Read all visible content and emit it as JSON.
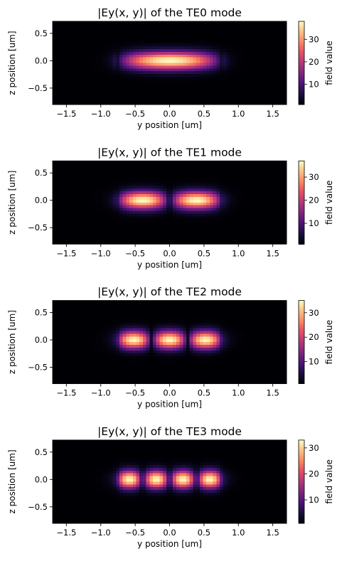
{
  "colors": {
    "cmap": "magma",
    "frame": "#000000",
    "background": "#ffffff"
  },
  "chart_data": [
    {
      "type": "heatmap",
      "title": "|Ey(x, y)| of the TE0 mode",
      "xlabel": "y position [um]",
      "ylabel": "z position [um]",
      "xlim": [
        -1.7,
        1.7
      ],
      "ylim": [
        -0.8,
        0.72
      ],
      "xticks": [
        "-1.5",
        "-1.0",
        "-0.5",
        "0.0",
        "0.5",
        "1.0",
        "1.5"
      ],
      "yticks": [
        "-0.5",
        "0.0",
        "0.5"
      ],
      "mode": 0,
      "vmin": 1,
      "vmax": 38,
      "colorbar": {
        "label": "field value",
        "ticks": [
          "10",
          "20",
          "30"
        ]
      }
    },
    {
      "type": "heatmap",
      "title": "|Ey(x, y)| of the TE1 mode",
      "xlabel": "y position [um]",
      "ylabel": "z position [um]",
      "xlim": [
        -1.7,
        1.7
      ],
      "ylim": [
        -0.8,
        0.72
      ],
      "xticks": [
        "-1.5",
        "-1.0",
        "-0.5",
        "0.0",
        "0.5",
        "1.0",
        "1.5"
      ],
      "yticks": [
        "-0.5",
        "0.0",
        "0.5"
      ],
      "mode": 1,
      "vmin": 1,
      "vmax": 37,
      "colorbar": {
        "label": "field value",
        "ticks": [
          "10",
          "20",
          "30"
        ]
      }
    },
    {
      "type": "heatmap",
      "title": "|Ey(x, y)| of the TE2 mode",
      "xlabel": "y position [um]",
      "ylabel": "z position [um]",
      "xlim": [
        -1.7,
        1.7
      ],
      "ylim": [
        -0.8,
        0.72
      ],
      "xticks": [
        "-1.5",
        "-1.0",
        "-0.5",
        "0.0",
        "0.5",
        "1.0",
        "1.5"
      ],
      "yticks": [
        "-0.5",
        "0.0",
        "0.5"
      ],
      "mode": 2,
      "vmin": 1,
      "vmax": 35,
      "colorbar": {
        "label": "field value",
        "ticks": [
          "10",
          "20",
          "30"
        ]
      }
    },
    {
      "type": "heatmap",
      "title": "|Ey(x, y)| of the TE3 mode",
      "xlabel": "y position [um]",
      "ylabel": "z position [um]",
      "xlim": [
        -1.7,
        1.7
      ],
      "ylim": [
        -0.8,
        0.72
      ],
      "xticks": [
        "-1.5",
        "-1.0",
        "-0.5",
        "0.0",
        "0.5",
        "1.0",
        "1.5"
      ],
      "yticks": [
        "-0.5",
        "0.0",
        "0.5"
      ],
      "mode": 3,
      "vmin": 1,
      "vmax": 33,
      "colorbar": {
        "label": "field value",
        "ticks": [
          "10",
          "20",
          "30"
        ]
      }
    }
  ]
}
